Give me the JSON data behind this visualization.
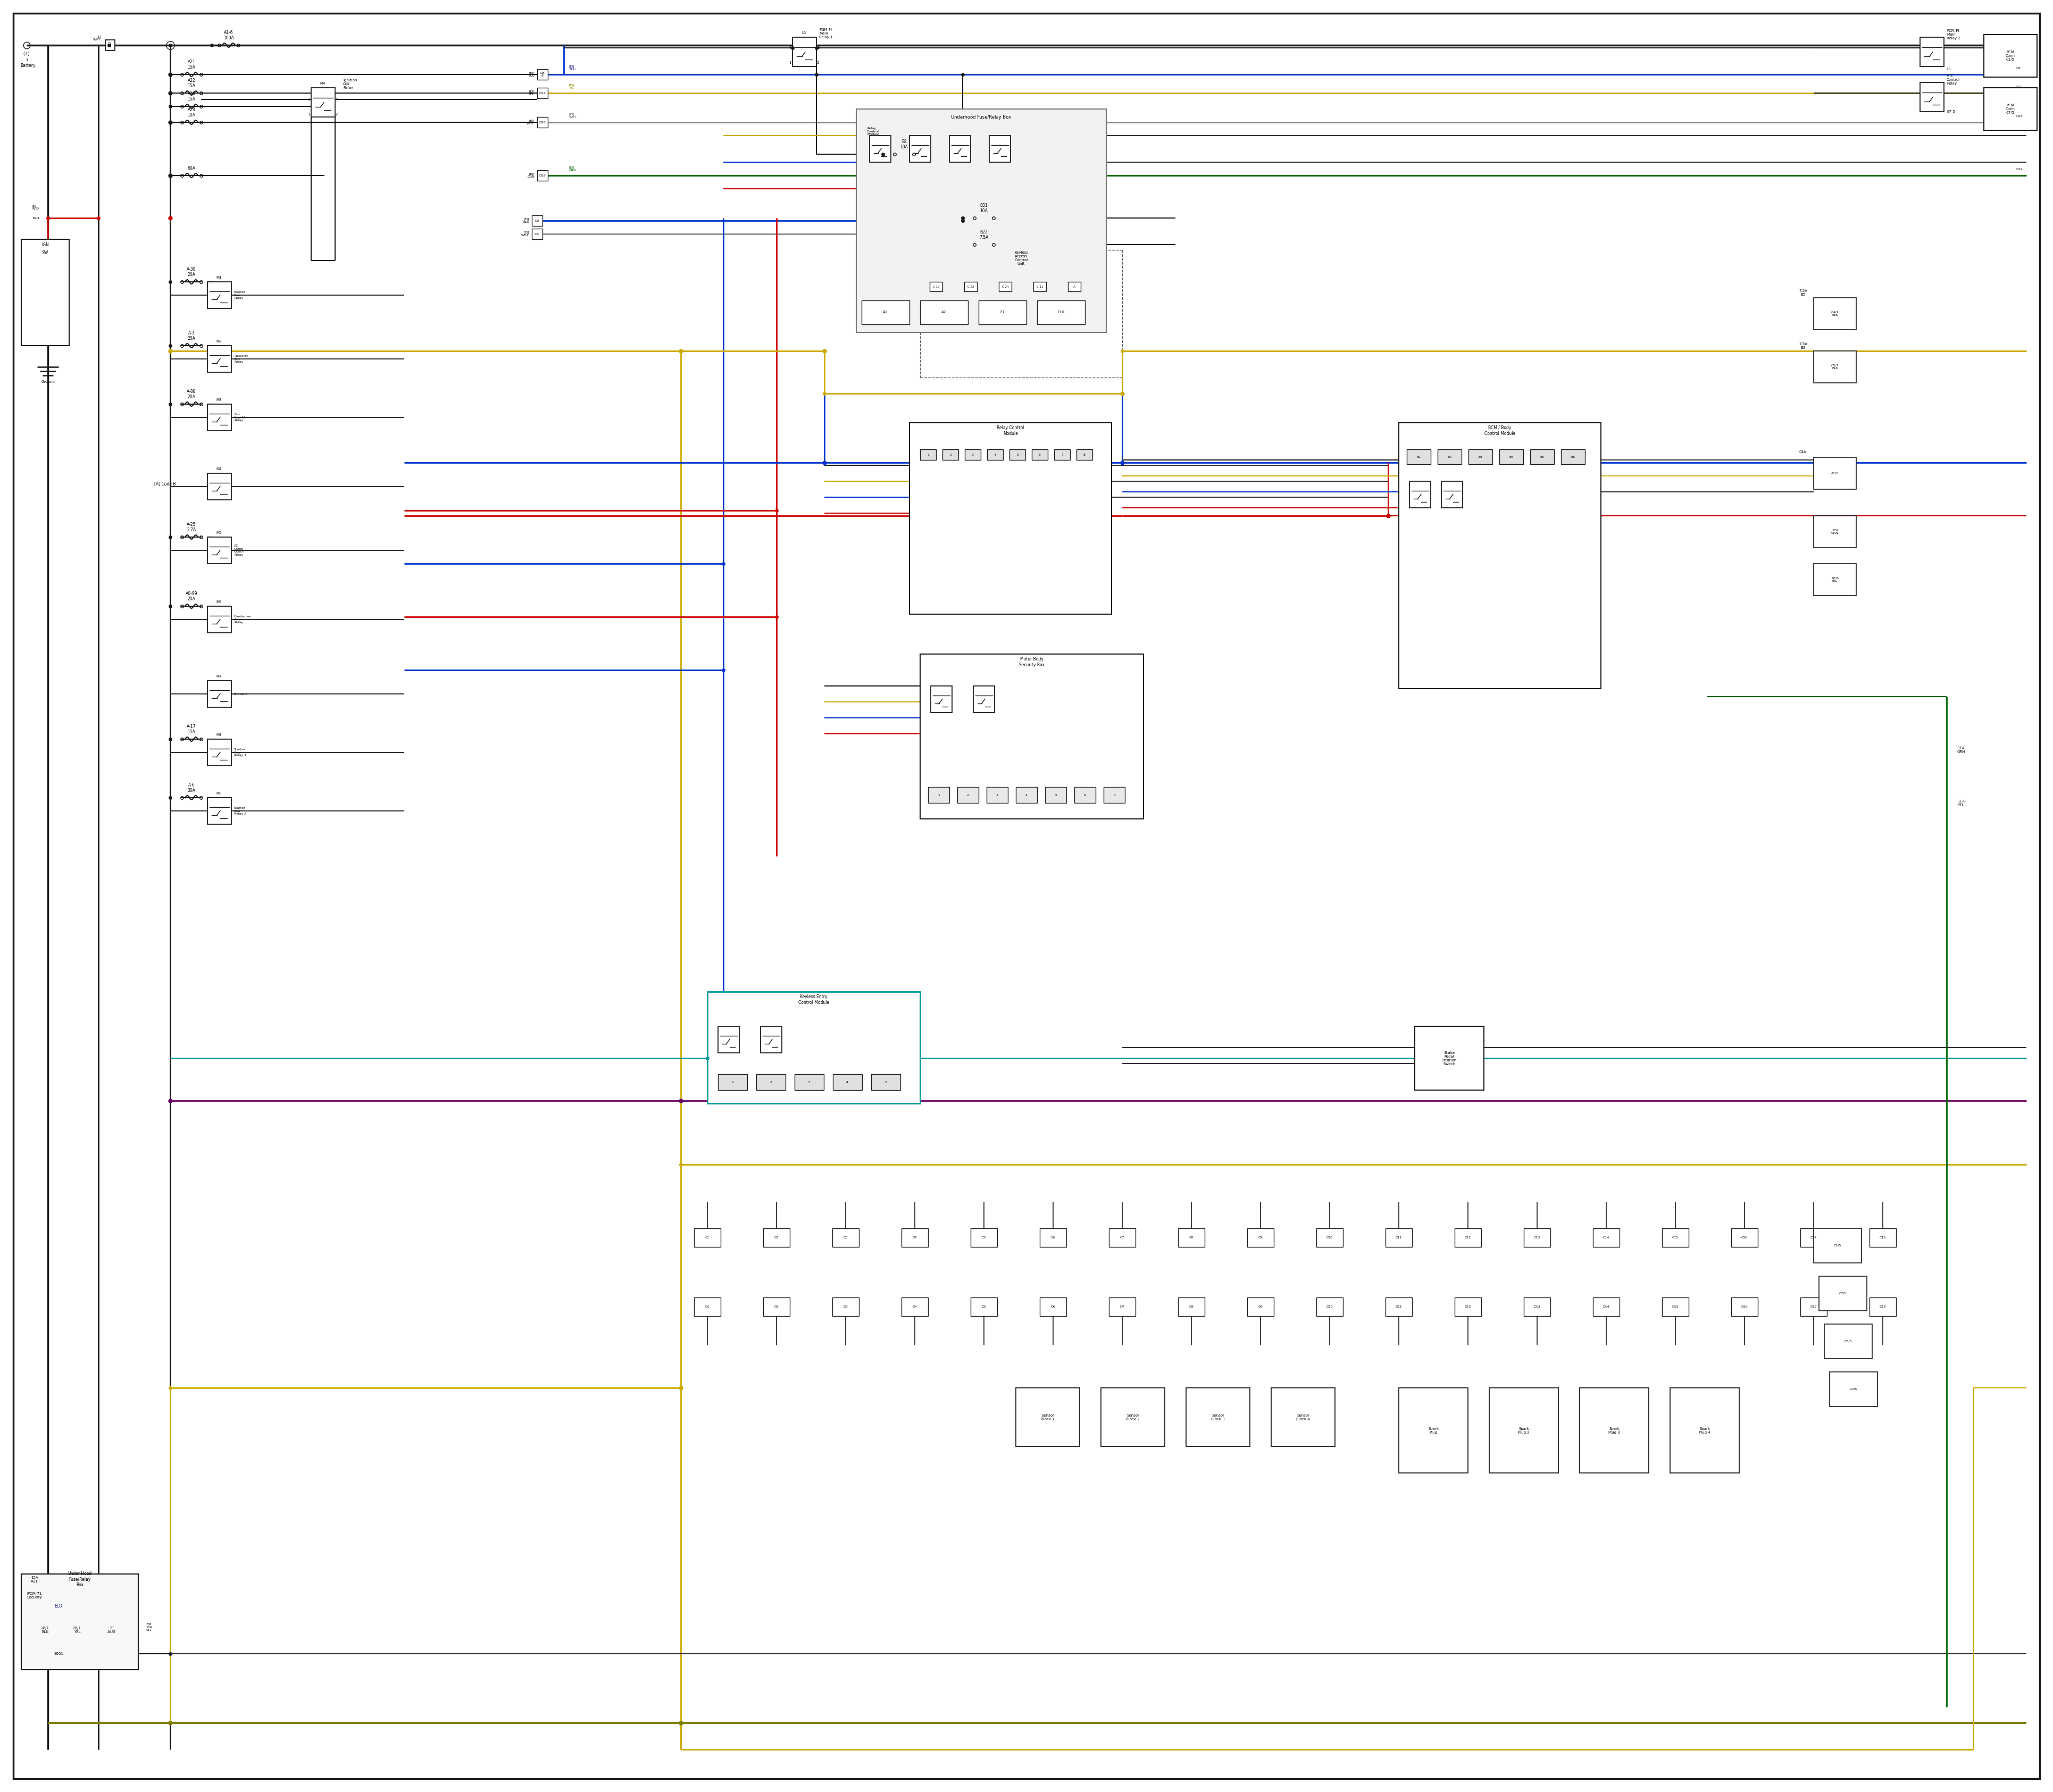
{
  "bg": "#ffffff",
  "black": "#1a1a1a",
  "red": "#cc0000",
  "blue": "#0033cc",
  "yellow": "#ccaa00",
  "green": "#006600",
  "cyan": "#009999",
  "purple": "#660066",
  "gray": "#888888",
  "dark_olive": "#808000",
  "fig_w": 38.4,
  "fig_h": 33.5
}
